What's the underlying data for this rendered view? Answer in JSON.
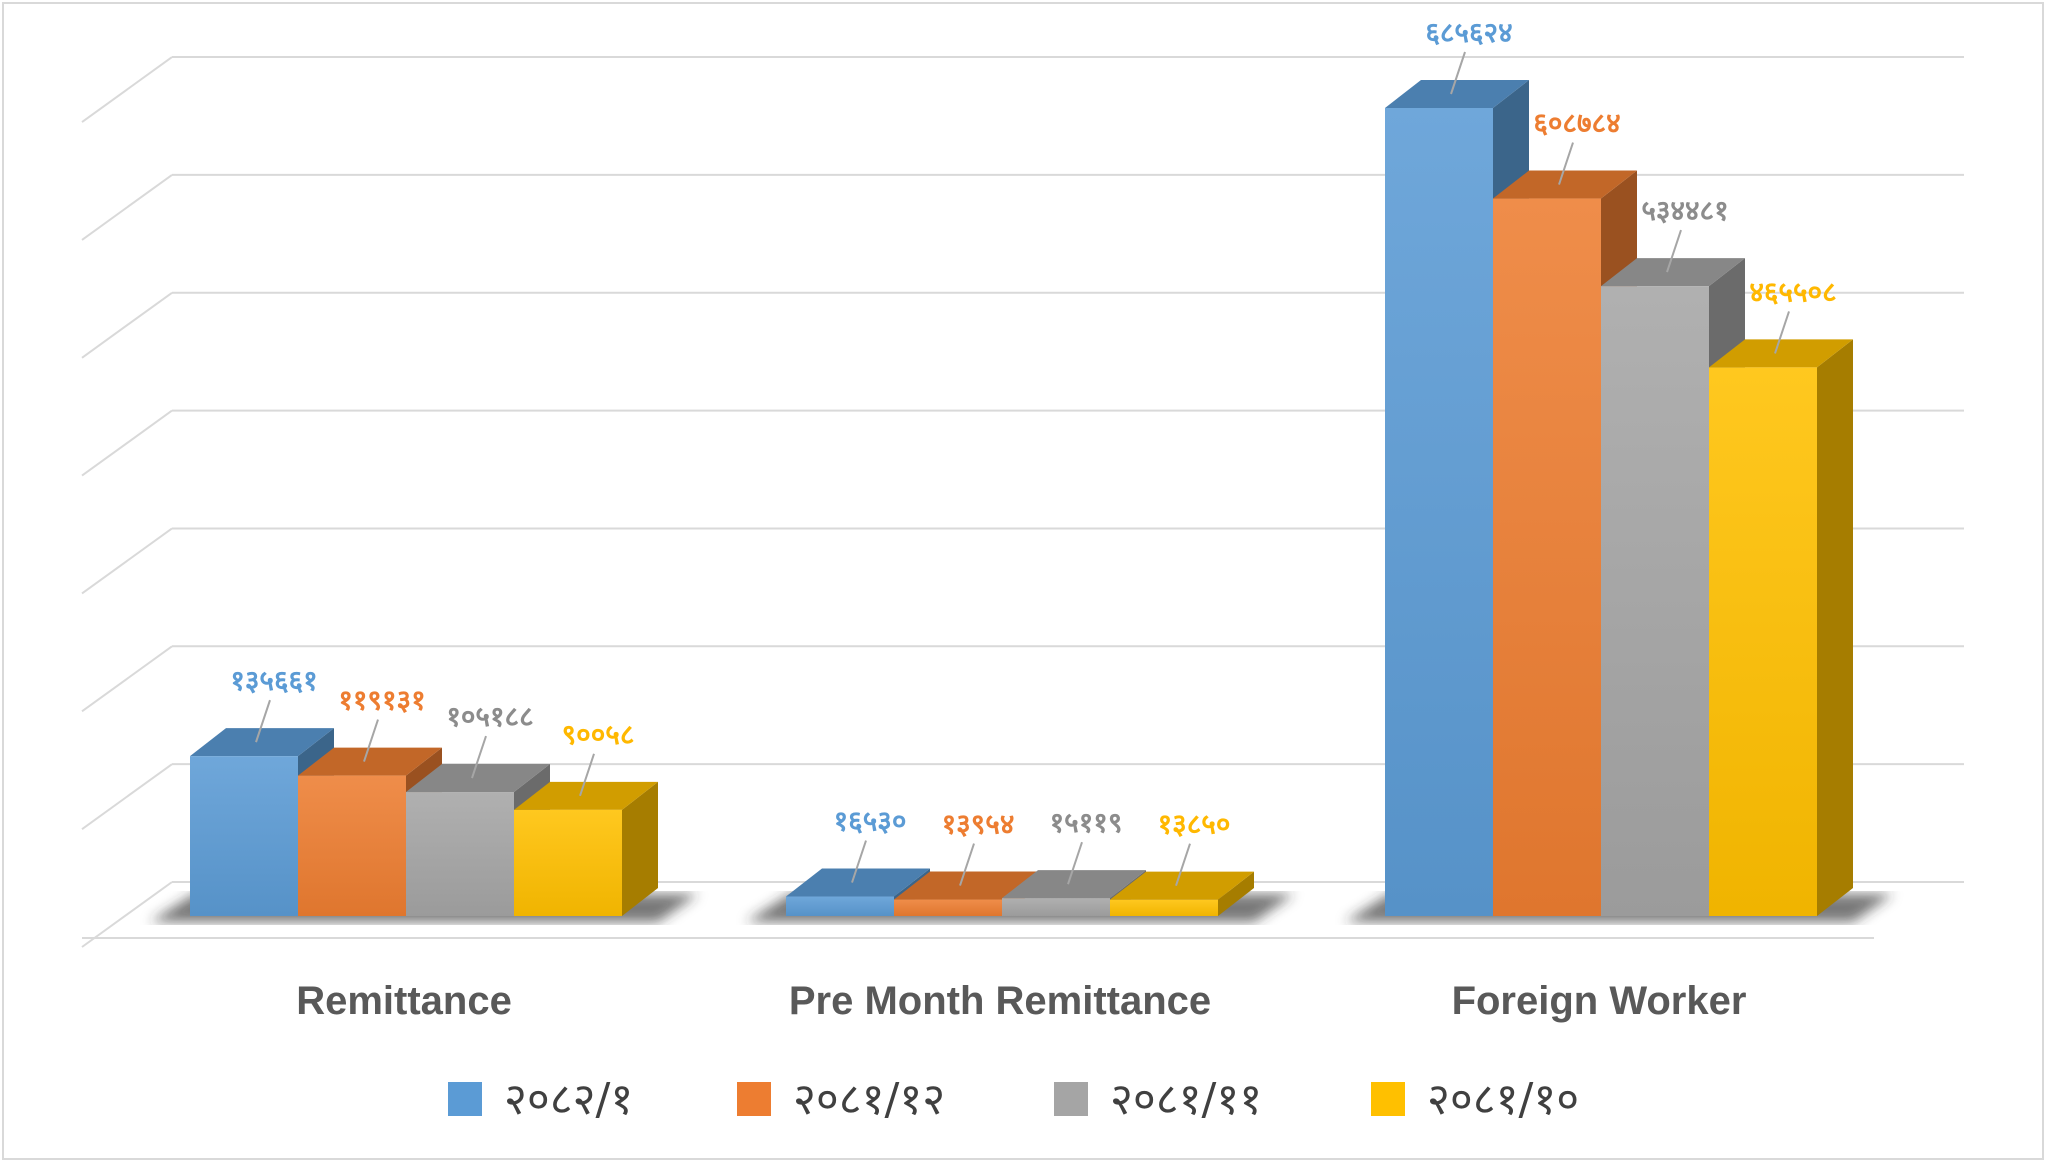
{
  "chart_data": {
    "type": "bar",
    "categories": [
      "Remittance",
      "Pre Month Remittance",
      "Foreign Worker"
    ],
    "series": [
      {
        "name": "२०८२/१",
        "color": "#5b9bd5",
        "values": [
          135661,
          16530,
          685624
        ],
        "labels": [
          "१३५६६१",
          "१६५३०",
          "६८५६२४"
        ]
      },
      {
        "name": "२०८१/१२",
        "color": "#ed7d31",
        "values": [
          119131,
          13954,
          608784
        ],
        "labels": [
          "११९१३१",
          "१३९५४",
          "६०८७८४"
        ]
      },
      {
        "name": "२०८१/११",
        "color": "#a5a5a5",
        "values": [
          105188,
          15119,
          534481
        ],
        "labels": [
          "१०५१८८",
          "१५११९",
          "५३४४८१"
        ]
      },
      {
        "name": "२०८१/१०",
        "color": "#ffc000",
        "values": [
          90058,
          13850,
          465508
        ],
        "labels": [
          "९००५८",
          "१३८५०",
          "४६५५०८"
        ]
      }
    ],
    "ylim": [
      0,
      700000
    ],
    "grid": true,
    "legend": "bottom",
    "style": "3d-clustered-column"
  }
}
